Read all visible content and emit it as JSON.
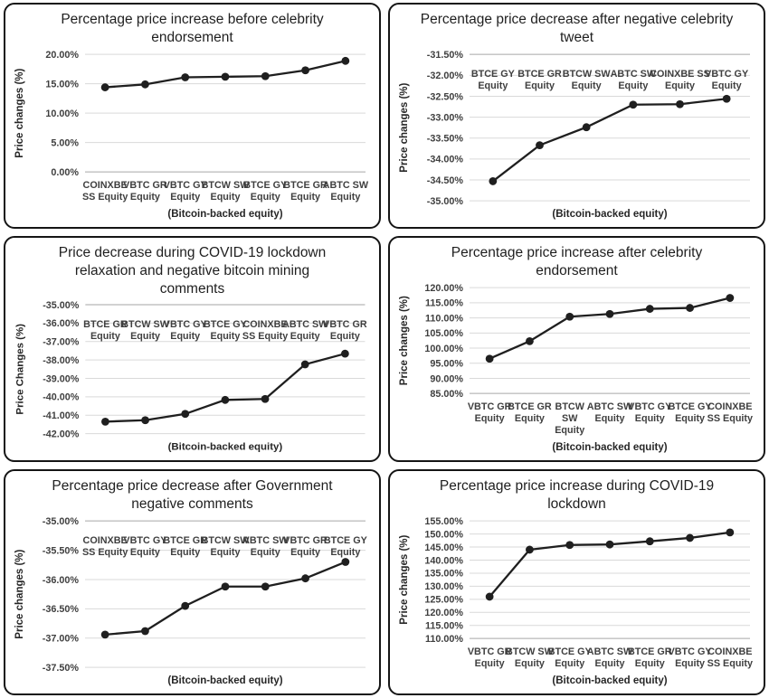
{
  "colors": {
    "line": "#1f1f1f",
    "grid": "#d9d9d9",
    "axis": "#a6a6a6",
    "tick_text": "#3f3f3f",
    "title_text": "#1f1f1f",
    "panel_border": "#151515"
  },
  "chart_data": [
    {
      "type": "line",
      "title": "Percentage price increase before celebrity endorsement",
      "ylabel": "Price changes (%)",
      "xlabel": "(Bitcoin-backed equity)",
      "categories": [
        "COINXBE SS Equity",
        "VBTC GR Equity",
        "VBTC GY Equity",
        "BTCW SW Equity",
        "BTCE GY Equity",
        "BTCE GR Equity",
        "ABTC SW Equity"
      ],
      "category_lines": [
        [
          "COINXBE",
          "SS Equity"
        ],
        [
          "VBTC GR",
          "Equity"
        ],
        [
          "VBTC GY",
          "Equity"
        ],
        [
          "BTCW SW",
          "Equity"
        ],
        [
          "BTCE GY",
          "Equity"
        ],
        [
          "BTCE GR",
          "Equity"
        ],
        [
          "ABTC SW",
          "Equity"
        ]
      ],
      "values": [
        14.4,
        14.9,
        16.1,
        16.2,
        16.3,
        17.3,
        18.9
      ],
      "yticks": [
        20,
        15,
        10,
        5,
        0
      ],
      "ylim": [
        0,
        20
      ],
      "grid": true,
      "labels_position": "bottom",
      "axis_side": "bottom",
      "legend": "none"
    },
    {
      "type": "line",
      "title": "Percentage price decrease after negative celebrity tweet",
      "ylabel": "Price changes (%)",
      "xlabel": "(Bitcoin-backed equity)",
      "categories": [
        "BTCE GY Equity",
        "BTCE GR Equity",
        "BTCW SW Equity",
        "ABTC SW Equity",
        "COINXBE SS Equity",
        "VBTC GY Equity"
      ],
      "category_lines": [
        [
          "BTCE GY",
          "Equity"
        ],
        [
          "BTCE GR",
          "Equity"
        ],
        [
          "BTCW SW",
          "Equity"
        ],
        [
          "ABTC SW",
          "Equity"
        ],
        [
          "COINXBE SS",
          "Equity"
        ],
        [
          "VBTC GY",
          "Equity"
        ]
      ],
      "values": [
        -34.53,
        -33.67,
        -33.24,
        -32.7,
        -32.69,
        -32.56
      ],
      "yticks": [
        -31.5,
        -32,
        -32.5,
        -33,
        -33.5,
        -34,
        -34.5,
        -35
      ],
      "ylim": [
        -35,
        -31.5
      ],
      "grid": true,
      "labels_position": "top",
      "axis_side": "top",
      "legend": "none"
    },
    {
      "type": "line",
      "title": "Price decrease during COVID-19 lockdown relaxation and negative bitcoin mining comments",
      "ylabel": "Price Changes (%)",
      "xlabel": "(Bitcoin-backed equity)",
      "categories": [
        "BTCE GR Equity",
        "BTCW SW Equity",
        "VBTC GY Equity",
        "BTCE GY Equity",
        "COINXBE SS Equity",
        "ABTC SW Equity",
        "VBTC GR Equity"
      ],
      "category_lines": [
        [
          "BTCE GR",
          "Equity"
        ],
        [
          "BTCW SW",
          "Equity"
        ],
        [
          "VBTC GY",
          "Equity"
        ],
        [
          "BTCE GY",
          "Equity"
        ],
        [
          "COINXBE",
          "SS Equity"
        ],
        [
          "ABTC SW",
          "Equity"
        ],
        [
          "VBTC GR",
          "Equity"
        ]
      ],
      "values": [
        -41.35,
        -41.27,
        -40.93,
        -40.17,
        -40.12,
        -38.24,
        -37.66
      ],
      "yticks": [
        -35,
        -36,
        -37,
        -38,
        -39,
        -40,
        -41,
        -42
      ],
      "ylim": [
        -42,
        -35
      ],
      "grid": true,
      "labels_position": "top",
      "axis_side": "top",
      "legend": "none"
    },
    {
      "type": "line",
      "title": "Percentage price increase after celebrity endorsement",
      "ylabel": "Price changes (%)",
      "xlabel": "(Bitcoin-backed equity)",
      "categories": [
        "VBTC GR Equity",
        "BTCE GR Equity",
        "BTCW SW Equity",
        "ABTC SW Equity",
        "VBTC GY Equity",
        "BTCE GY Equity",
        "COINXBE SS Equity"
      ],
      "category_lines": [
        [
          "VBTC GR",
          "Equity"
        ],
        [
          "BTCE GR",
          "Equity"
        ],
        [
          "BTCW",
          "SW",
          "Equity"
        ],
        [
          "ABTC SW",
          "Equity"
        ],
        [
          "VBTC GY",
          "Equity"
        ],
        [
          "BTCE GY",
          "Equity"
        ],
        [
          "COINXBE",
          "SS Equity"
        ]
      ],
      "values": [
        96.5,
        102.3,
        110.4,
        111.3,
        113.0,
        113.3,
        116.6
      ],
      "yticks": [
        120,
        115,
        110,
        105,
        100,
        95,
        90,
        85
      ],
      "ylim": [
        85,
        120
      ],
      "grid": true,
      "labels_position": "bottom",
      "axis_side": "bottom",
      "legend": "none"
    },
    {
      "type": "line",
      "title": "Percentage price decrease after Government negative comments",
      "ylabel": "Price changes (%)",
      "xlabel": "(Bitcoin-backed equity)",
      "categories": [
        "COINXBE SS Equity",
        "VBTC GY Equity",
        "BTCE GR Equity",
        "BTCW SW Equity",
        "ABTC SW Equity",
        "VBTC GR Equity",
        "BTCE GY Equity"
      ],
      "category_lines": [
        [
          "COINXBE",
          "SS Equity"
        ],
        [
          "VBTC GY",
          "Equity"
        ],
        [
          "BTCE GR",
          "Equity"
        ],
        [
          "BTCW SW",
          "Equity"
        ],
        [
          "ABTC SW",
          "Equity"
        ],
        [
          "VBTC GR",
          "Equity"
        ],
        [
          "BTCE GY",
          "Equity"
        ]
      ],
      "values": [
        -36.94,
        -36.88,
        -36.45,
        -36.12,
        -36.12,
        -35.98,
        -35.7
      ],
      "yticks": [
        -35,
        -35.5,
        -36,
        -36.5,
        -37,
        -37.5
      ],
      "ylim": [
        -37.5,
        -35
      ],
      "grid": true,
      "labels_position": "top",
      "axis_side": "top",
      "legend": "none"
    },
    {
      "type": "line",
      "title": "Percentage price increase during COVID-19 lockdown",
      "ylabel": "Price changes (%)",
      "xlabel": "(Bitcoin-backed equity)",
      "categories": [
        "VBTC GR Equity",
        "BTCW SW Equity",
        "BTCE GY Equity",
        "ABTC SW Equity",
        "BTCE GR Equity",
        "VBTC GY Equity",
        "COINXBE SS Equity"
      ],
      "category_lines": [
        [
          "VBTC GR",
          "Equity"
        ],
        [
          "BTCW SW",
          "Equity"
        ],
        [
          "BTCE GY",
          "Equity"
        ],
        [
          "ABTC SW",
          "Equity"
        ],
        [
          "BTCE GR",
          "Equity"
        ],
        [
          "VBTC GY",
          "Equity"
        ],
        [
          "COINXBE",
          "SS Equity"
        ]
      ],
      "values": [
        126.0,
        144.0,
        145.8,
        146.0,
        147.2,
        148.5,
        150.6
      ],
      "yticks": [
        155,
        150,
        145,
        140,
        135,
        130,
        125,
        120,
        115,
        110
      ],
      "ylim": [
        110,
        155
      ],
      "grid": true,
      "labels_position": "bottom",
      "axis_side": "bottom",
      "legend": "none"
    }
  ]
}
